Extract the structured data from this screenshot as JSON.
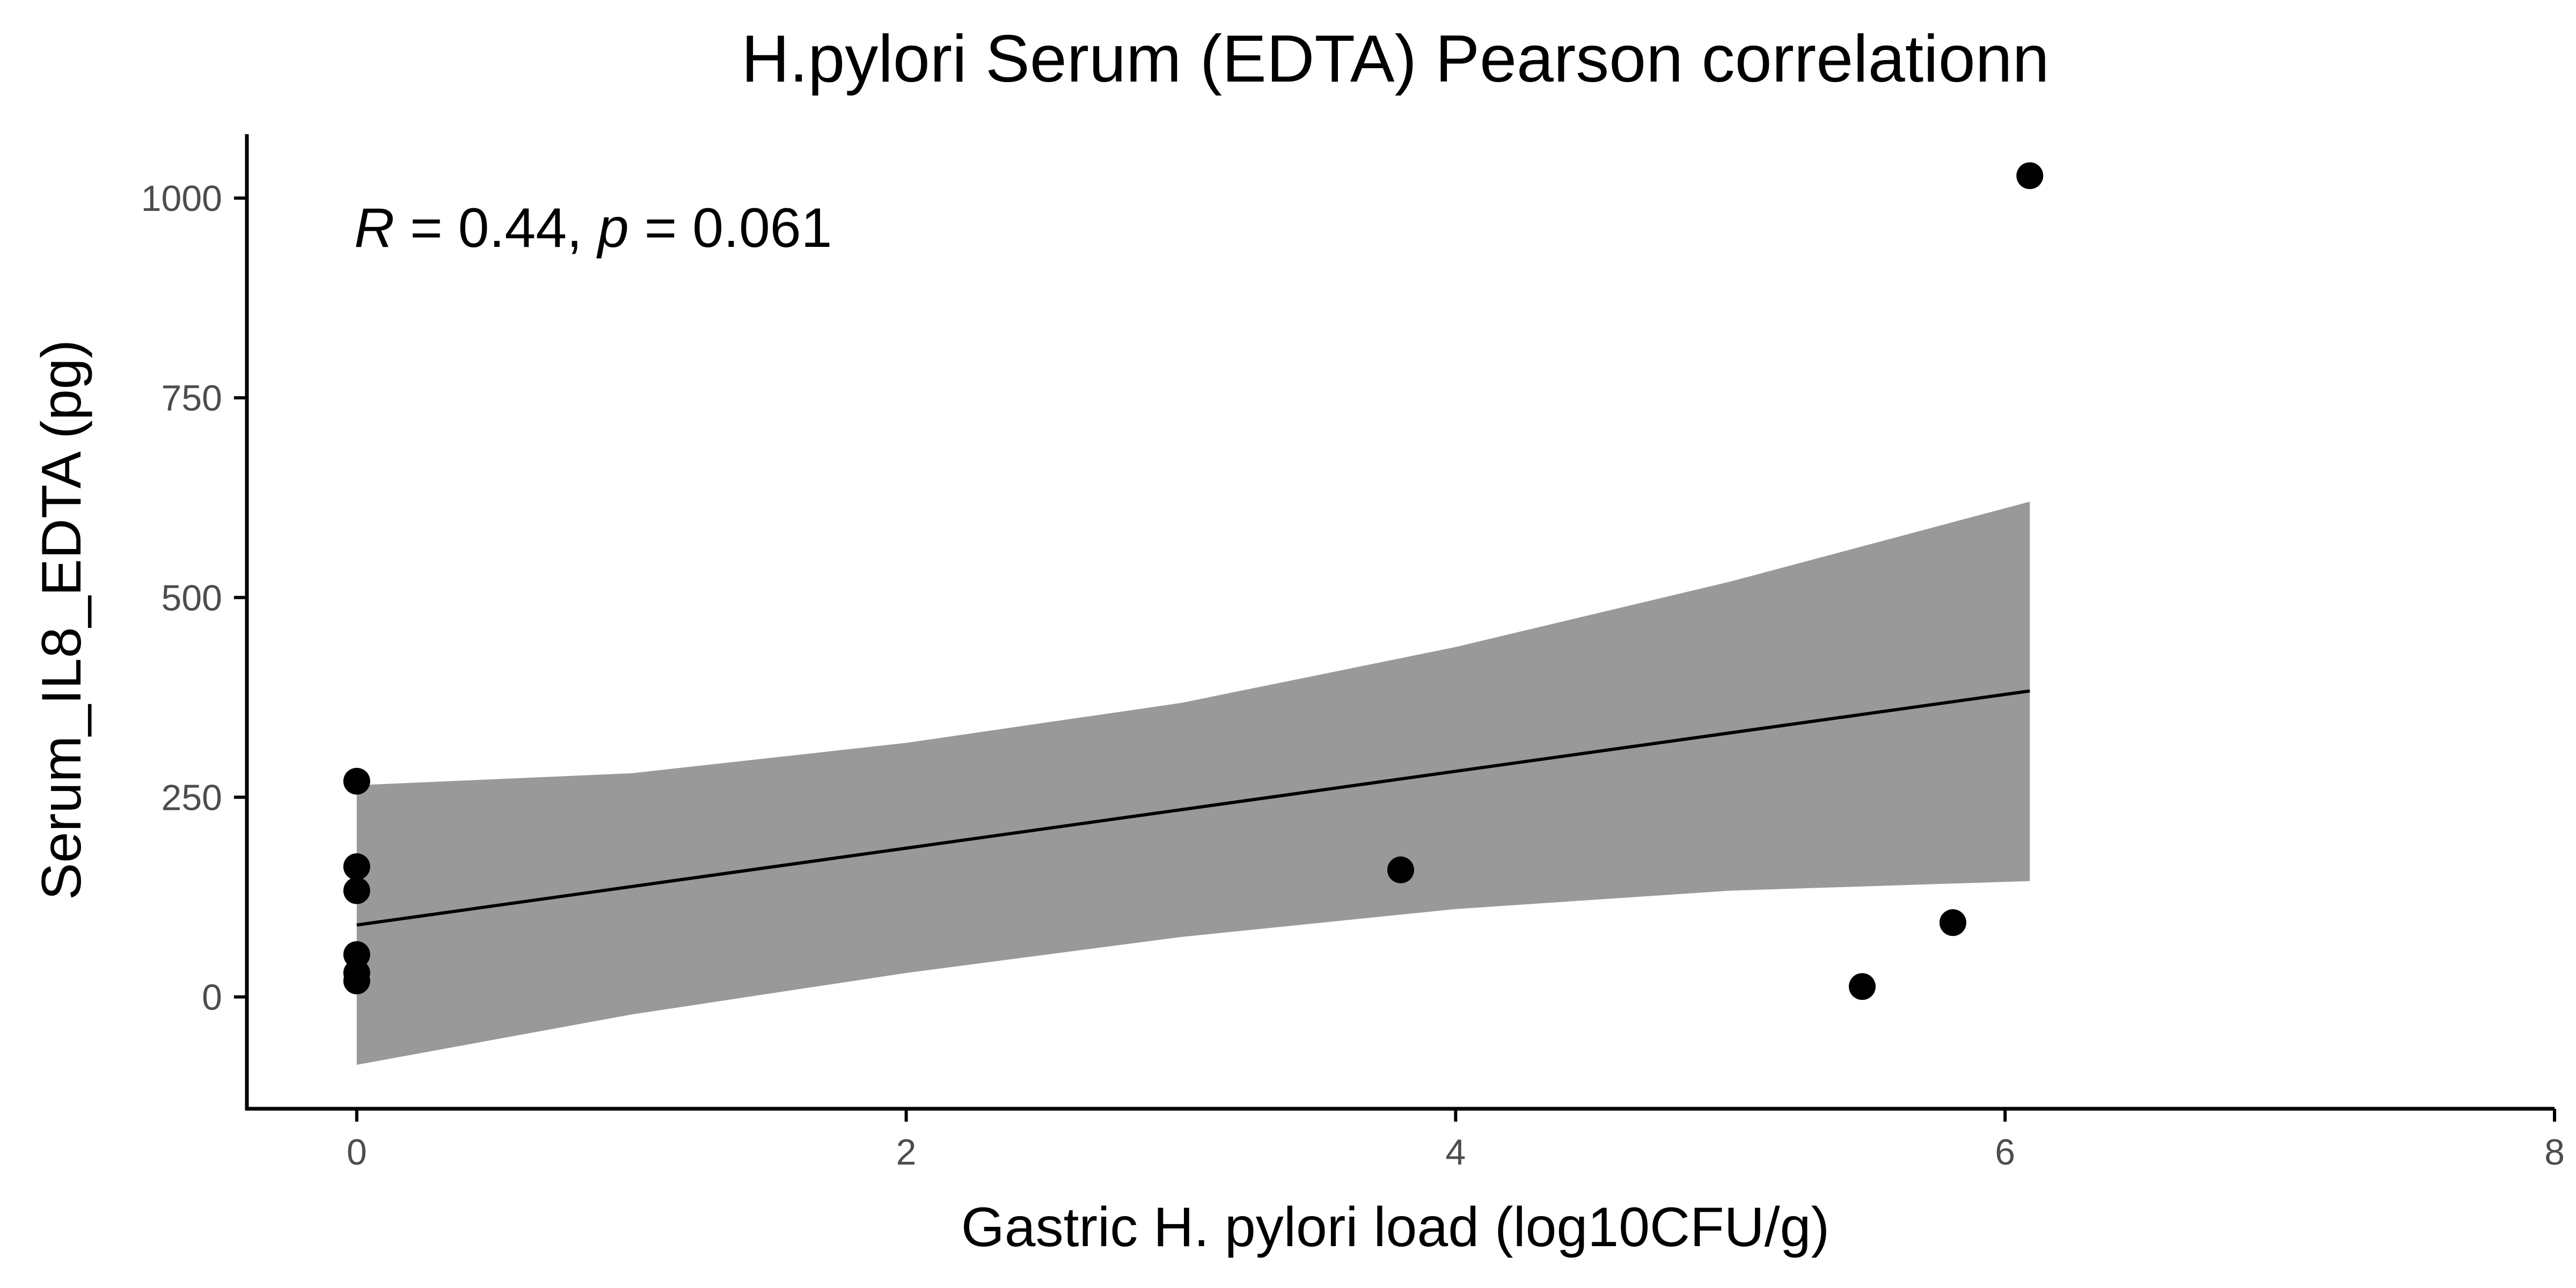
{
  "chart_data": {
    "type": "scatter",
    "title": "H.pylori Serum (EDTA) Pearson correlationn",
    "xlabel": "Gastric H. pylori load (log10CFU/g)",
    "ylabel": "Serum_IL8_EDTA (pg)",
    "xlim": [
      -0.4,
      8
    ],
    "ylim": [
      -140,
      1080
    ],
    "xticks": [
      0,
      2,
      4,
      6,
      8
    ],
    "yticks": [
      0,
      250,
      500,
      750,
      1000
    ],
    "xtick_labels": [
      "0",
      "2",
      "4",
      "6",
      "8"
    ],
    "ytick_labels": [
      "0",
      "250",
      "500",
      "750",
      "1000"
    ],
    "grid": false,
    "legend": "none",
    "annotation": {
      "r_symbol": "R",
      "r_text": " = 0.44, ",
      "p_symbol": "p",
      "p_text": " = 0.061"
    },
    "points": [
      {
        "x": 0,
        "y": 270
      },
      {
        "x": 0,
        "y": 163
      },
      {
        "x": 0,
        "y": 133
      },
      {
        "x": 0,
        "y": 53
      },
      {
        "x": 0,
        "y": 30
      },
      {
        "x": 0,
        "y": 20
      },
      {
        "x": 3.8,
        "y": 159
      },
      {
        "x": 5.48,
        "y": 13
      },
      {
        "x": 5.81,
        "y": 93
      },
      {
        "x": 6.09,
        "y": 1028
      }
    ],
    "fit_line": {
      "x": [
        0,
        6.09
      ],
      "y": [
        90,
        383
      ]
    },
    "confidence_band": {
      "x": [
        0,
        1,
        2,
        3,
        4,
        5,
        6.09
      ],
      "lower": [
        -85,
        -22,
        30,
        75,
        110,
        133,
        145
      ],
      "upper": [
        265,
        280,
        318,
        368,
        438,
        520,
        620
      ]
    },
    "colors": {
      "points": "#000000",
      "line": "#000000",
      "band": "#999999",
      "axis": "#000000"
    }
  }
}
